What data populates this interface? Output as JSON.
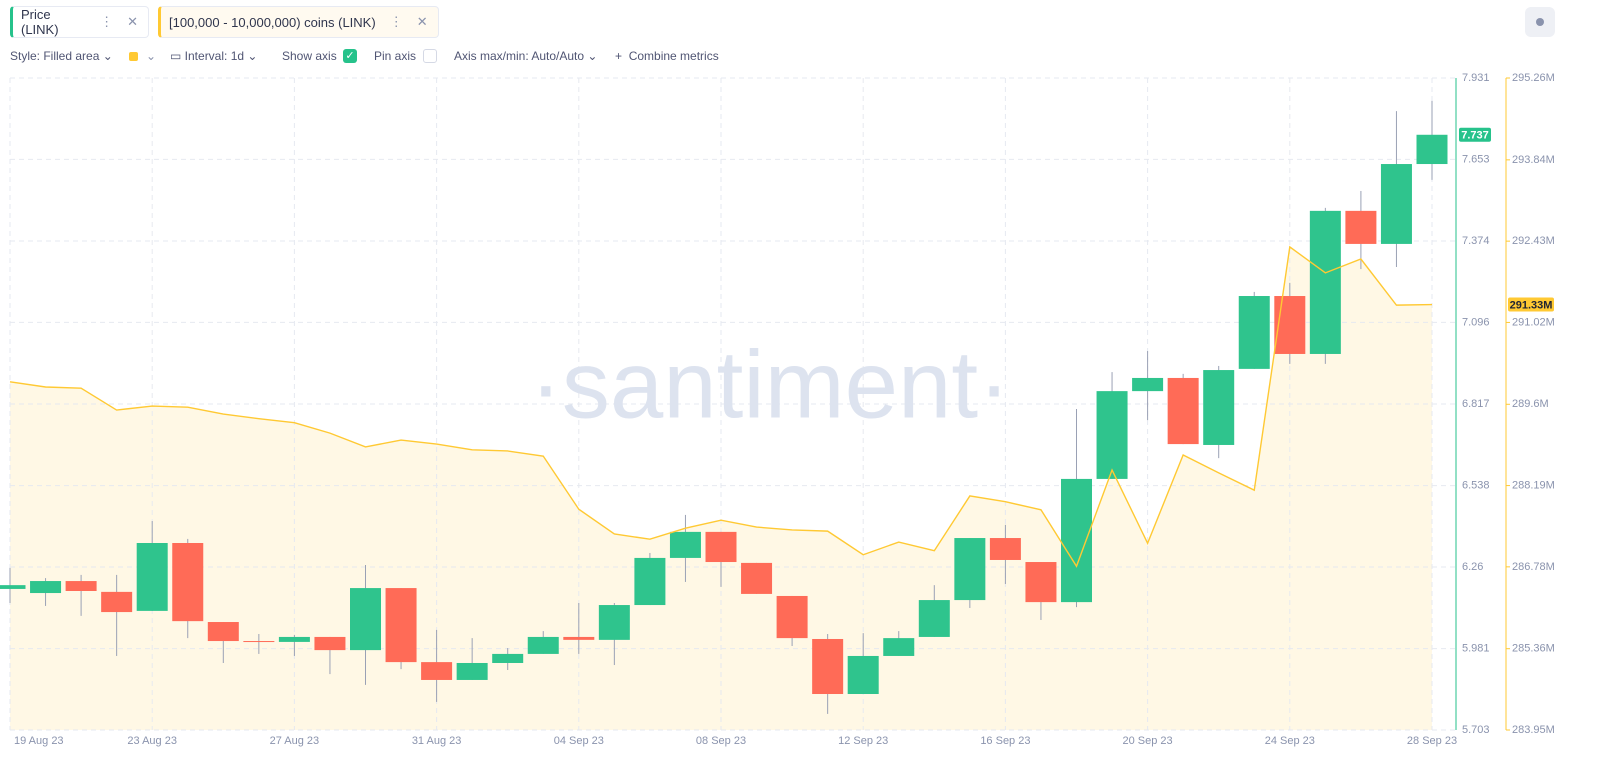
{
  "toolbar": {
    "style": "Style: Filled area",
    "interval": "Interval: 1d",
    "show_axis": "Show axis",
    "pin_axis": "Pin axis",
    "axis_minmax": "Axis max/min: Auto/Auto",
    "combine": "Combine metrics"
  },
  "chart_data": {
    "type": "candlestick",
    "watermark": "·santiment·",
    "categories": [
      "19 Aug 23",
      null,
      null,
      null,
      "23 Aug 23",
      null,
      null,
      null,
      "27 Aug 23",
      null,
      null,
      null,
      "31 Aug 23",
      null,
      null,
      null,
      "04 Sep 23",
      null,
      null,
      null,
      "08 Sep 23",
      null,
      null,
      null,
      "12 Sep 23",
      null,
      null,
      null,
      "16 Sep 23",
      null,
      null,
      null,
      "20 Sep 23",
      null,
      null,
      null,
      "24 Sep 23",
      null,
      null,
      null,
      "28 Sep 23"
    ],
    "ylim": [
      5.703,
      7.931
    ],
    "yticks": [
      5.703,
      5.981,
      6.26,
      6.538,
      6.817,
      7.096,
      7.374,
      7.653,
      7.931
    ],
    "y2lim": [
      283.95,
      295.26
    ],
    "y2ticks": [
      {
        "value": 283.95,
        "label": "283.95M"
      },
      {
        "value": 285.36,
        "label": "285.36M"
      },
      {
        "value": 286.78,
        "label": "286.78M"
      },
      {
        "value": 288.19,
        "label": "288.19M"
      },
      {
        "value": 289.6,
        "label": "289.6M"
      },
      {
        "value": 291.02,
        "label": "291.02M"
      },
      {
        "value": 292.43,
        "label": "292.43M"
      },
      {
        "value": 293.84,
        "label": "293.84M"
      },
      {
        "value": 295.26,
        "label": "295.26M"
      }
    ],
    "grid": true,
    "series": [
      {
        "name": "Price (LINK)",
        "type": "candlestick",
        "up_color": "#2fc48d",
        "down_color": "#ff6b57",
        "axis_color": "#26c28b",
        "last": 7.737,
        "open": [
          6.185,
          6.171,
          6.212,
          6.175,
          6.11,
          6.342,
          6.072,
          6.007,
          6.004,
          6.021,
          5.976,
          6.188,
          5.935,
          5.874,
          5.932,
          5.963,
          6.021,
          6.011,
          6.13,
          6.291,
          6.38,
          6.274,
          6.161,
          6.014,
          5.826,
          5.956,
          6.021,
          6.147,
          6.359,
          6.277,
          6.14,
          6.561,
          6.861,
          6.906,
          6.677,
          6.937,
          7.186,
          6.988,
          7.477,
          7.364,
          7.637
        ],
        "high": [
          6.257,
          6.222,
          6.233,
          6.233,
          6.417,
          6.356,
          6.072,
          6.031,
          6.028,
          6.021,
          6.267,
          6.188,
          6.045,
          6.017,
          5.983,
          6.041,
          6.137,
          6.137,
          6.308,
          6.438,
          6.38,
          6.274,
          6.161,
          6.031,
          6.034,
          6.041,
          6.198,
          6.359,
          6.404,
          6.277,
          6.8,
          6.926,
          6.998,
          6.92,
          6.947,
          7.2,
          7.231,
          7.487,
          7.545,
          7.818,
          7.853
        ],
        "low": [
          6.137,
          6.127,
          6.093,
          5.956,
          6.11,
          6.017,
          5.932,
          5.963,
          5.956,
          5.894,
          5.857,
          5.911,
          5.799,
          5.874,
          5.908,
          5.963,
          5.963,
          5.925,
          6.13,
          6.209,
          6.192,
          6.168,
          5.99,
          5.758,
          5.826,
          5.956,
          6.021,
          6.12,
          6.202,
          6.079,
          6.123,
          6.561,
          6.762,
          6.68,
          6.632,
          6.937,
          6.954,
          6.954,
          7.278,
          7.285,
          7.583
        ],
        "close": [
          6.198,
          6.212,
          6.178,
          6.106,
          6.342,
          6.075,
          6.007,
          6.004,
          6.021,
          5.976,
          6.188,
          5.935,
          5.874,
          5.932,
          5.963,
          6.021,
          6.011,
          6.13,
          6.291,
          6.38,
          6.277,
          6.168,
          6.017,
          5.826,
          5.956,
          6.017,
          6.147,
          6.359,
          6.284,
          6.14,
          6.561,
          6.861,
          6.906,
          6.68,
          6.933,
          7.186,
          6.988,
          7.477,
          7.364,
          7.637,
          7.737
        ]
      },
      {
        "name": "[100,000 - 10,000,000) coins (LINK)",
        "type": "area",
        "axis": "y2",
        "color": "#ffc933",
        "last": {
          "value": 291.33,
          "label": "291.33M"
        },
        "values": [
          289.99,
          289.9,
          289.88,
          289.5,
          289.57,
          289.55,
          289.43,
          289.35,
          289.28,
          289.1,
          288.86,
          288.98,
          288.91,
          288.81,
          288.79,
          288.7,
          287.78,
          287.35,
          287.26,
          287.45,
          287.59,
          287.47,
          287.42,
          287.4,
          286.99,
          287.21,
          287.06,
          288.01,
          287.91,
          287.77,
          286.79,
          288.46,
          287.19,
          288.72,
          288.41,
          288.11,
          292.33,
          291.88,
          292.12,
          291.32,
          291.33
        ]
      }
    ]
  }
}
